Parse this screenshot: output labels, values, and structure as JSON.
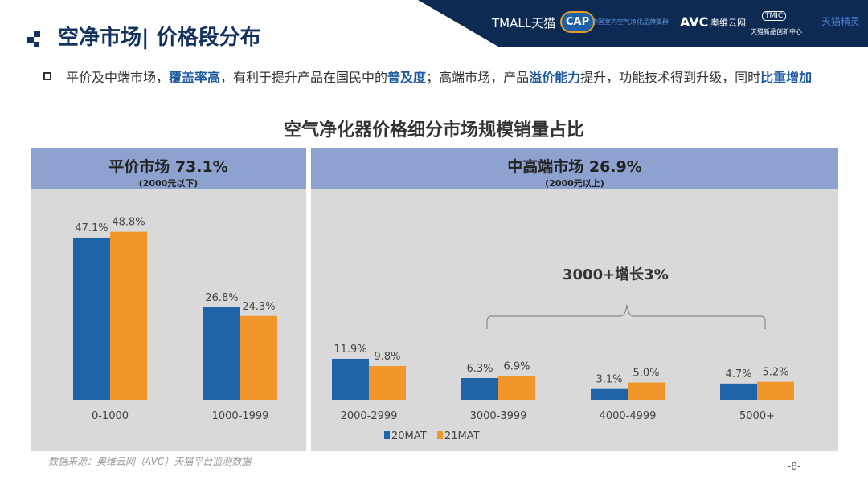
{
  "header": {
    "logos": [
      "TMALL天猫",
      "CAP",
      "中国室内空气净化品牌集群",
      "AVC",
      "奥维云网",
      "TMIC",
      "天猫新品创新中心",
      "天猫精灵"
    ]
  },
  "title": "空净市场| 价格段分布",
  "bullet": {
    "p1": "平价及中端市场，",
    "b1": "覆盖率高",
    "p2": "，有利于提升产品在国民中的",
    "b2": "普及度",
    "p3": "；高端市场，产品",
    "b3": "溢价能力",
    "p4": "提升，功能技术得到升级，同时",
    "b4": "比重增加"
  },
  "panels": {
    "left": {
      "title": "平价市场  73.1%",
      "sub": "(2000元以下)"
    },
    "right": {
      "title": "中高端市场 26.9%",
      "sub": "(2000元以上)"
    }
  },
  "annotation": "3000+增长3%",
  "chart_data": {
    "type": "bar",
    "title": "空气净化器价格细分市场规模销量占比",
    "categories": [
      "0-1000",
      "1000-1999",
      "2000-2999",
      "3000-3999",
      "4000-4999",
      "5000+"
    ],
    "series": [
      {
        "name": "20MAT",
        "color": "#1f64a8",
        "values": [
          47.1,
          26.8,
          11.9,
          6.3,
          3.1,
          4.7
        ]
      },
      {
        "name": "21MAT",
        "color": "#f0962a",
        "values": [
          48.8,
          24.3,
          9.8,
          6.9,
          5.0,
          5.2
        ]
      }
    ],
    "unit": "%",
    "ylim": [
      0,
      55
    ],
    "legend": "bottom-center",
    "grid": false
  },
  "footer": {
    "source": "数据来源：奥维云网（AVC）天猫平台监测数据",
    "page": "-8-"
  }
}
